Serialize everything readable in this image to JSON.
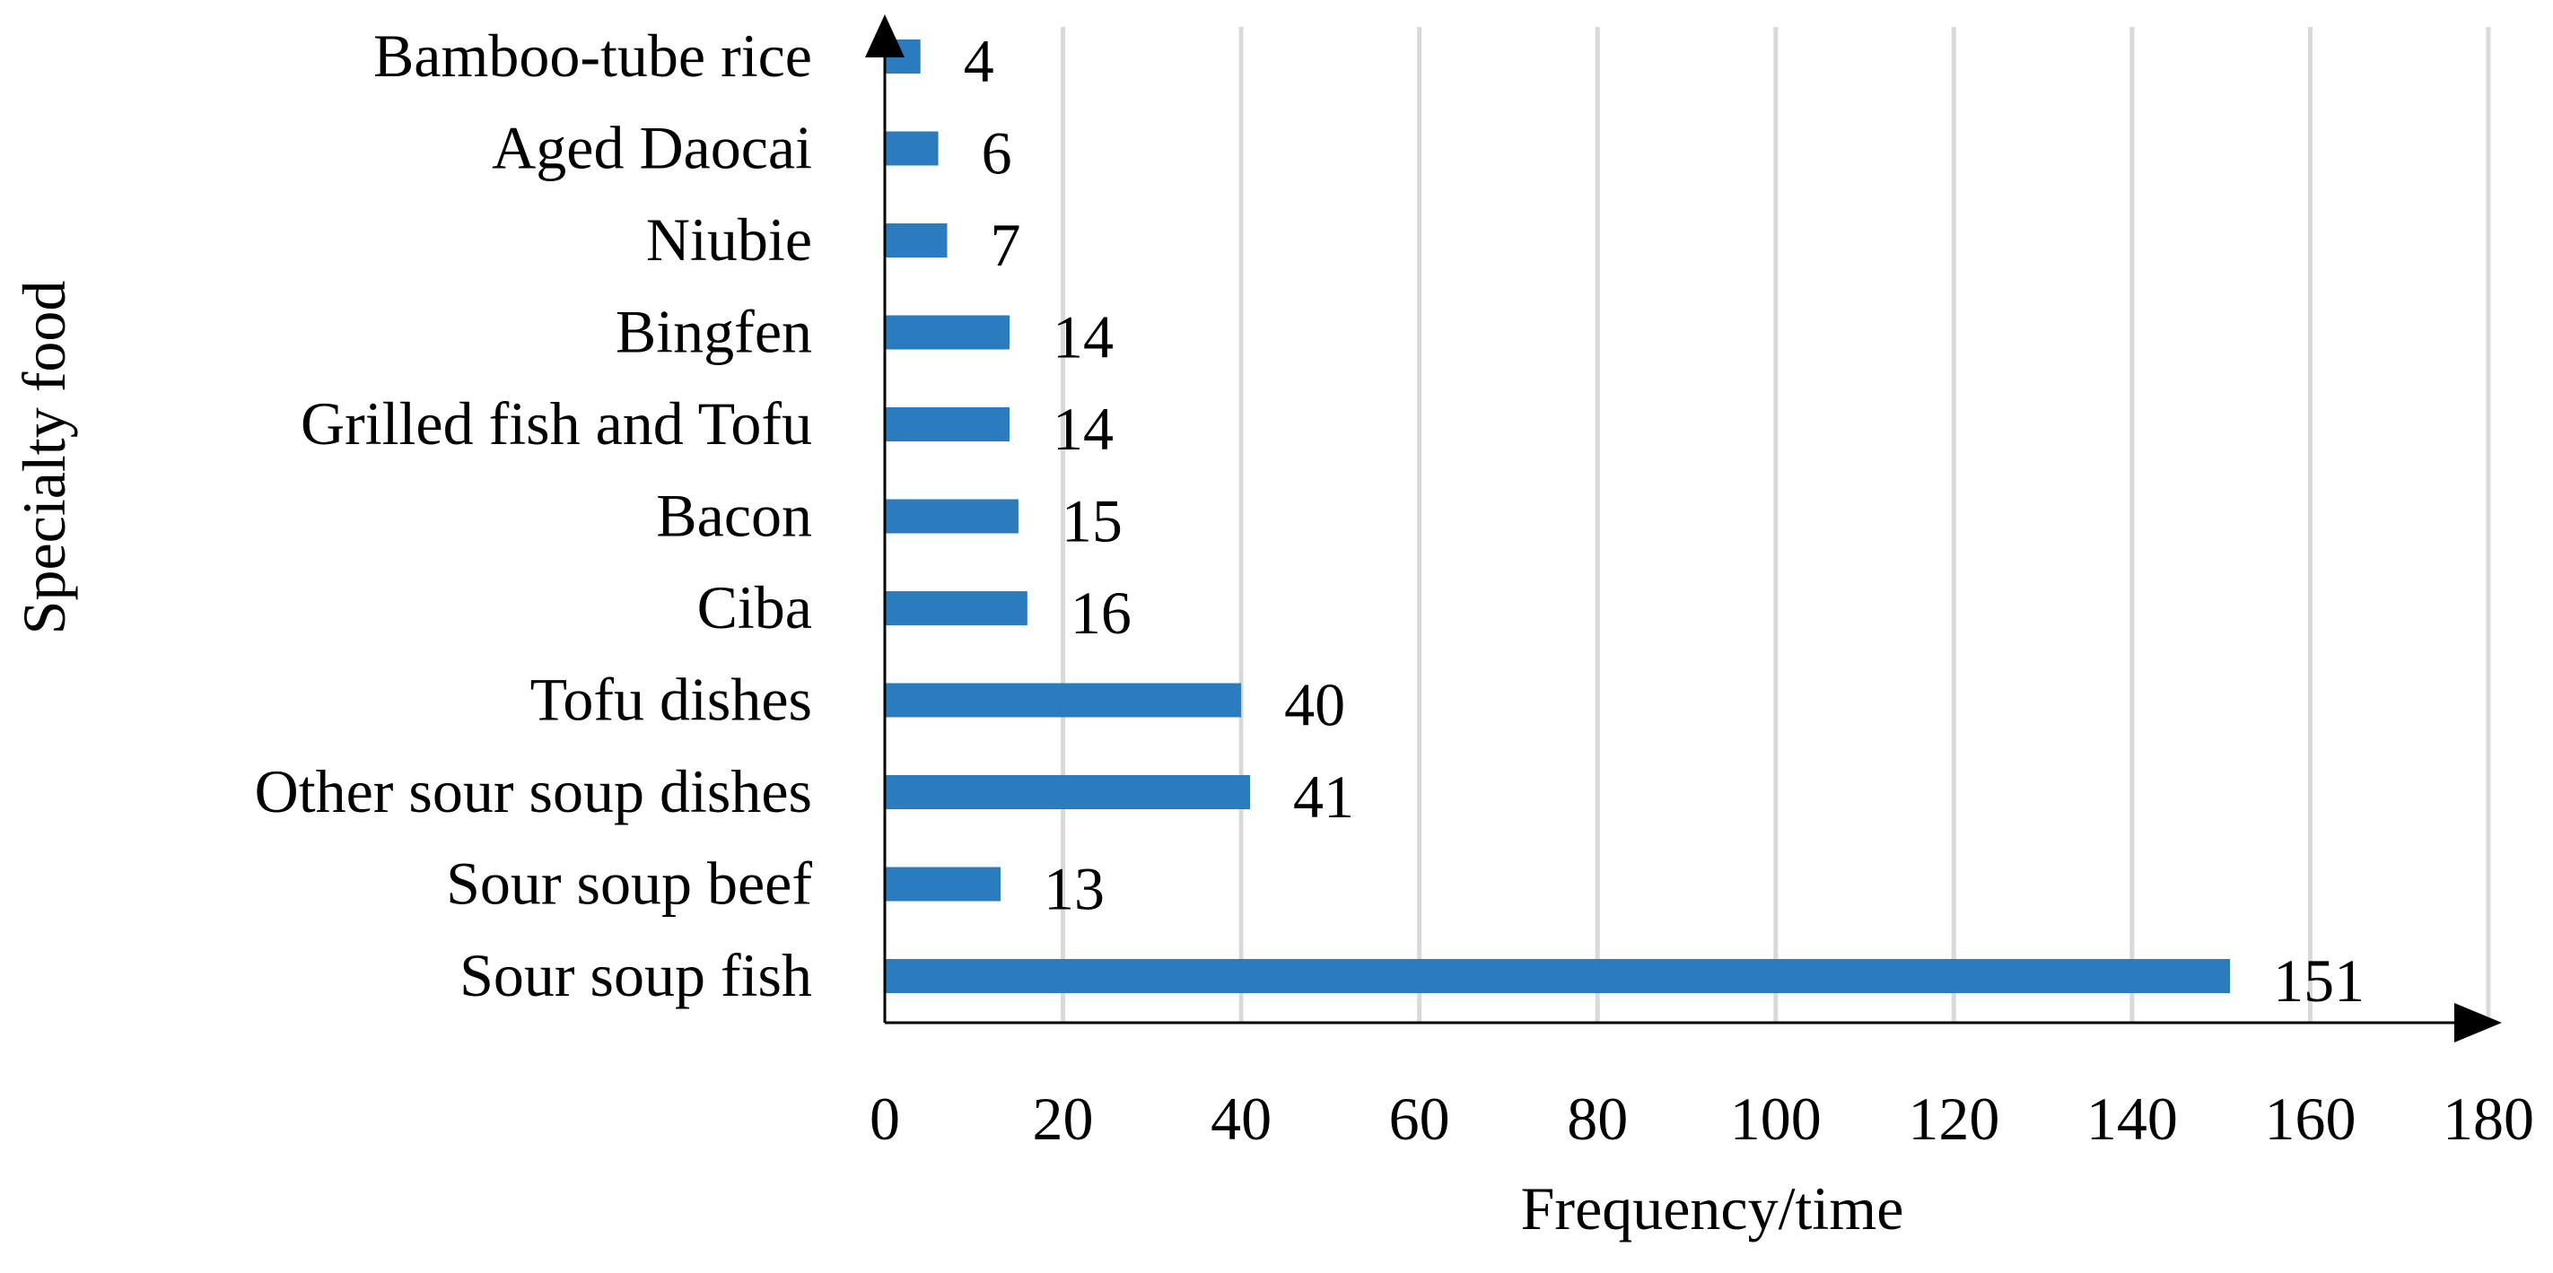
{
  "chart_data": {
    "type": "bar",
    "orientation": "horizontal",
    "categories": [
      "Bamboo-tube rice",
      "Aged Daocai",
      "Niubie",
      "Bingfen",
      "Grilled fish and Tofu",
      "Bacon",
      "Ciba",
      "Tofu dishes",
      "Other sour soup dishes",
      "Sour soup beef",
      "Sour soup fish"
    ],
    "values": [
      4,
      6,
      7,
      14,
      14,
      15,
      16,
      40,
      41,
      13,
      151
    ],
    "data_labels": [
      "4",
      "6",
      "7",
      "14",
      "14",
      "15",
      "16",
      "40",
      "41",
      "13",
      "151"
    ],
    "title": "",
    "xlabel": "Frequency/time",
    "ylabel": "Specialty food",
    "xlim": [
      0,
      180
    ],
    "xticks": [
      0,
      20,
      40,
      60,
      80,
      100,
      120,
      140,
      160,
      180
    ],
    "xtick_labels": [
      "0",
      "20",
      "40",
      "60",
      "80",
      "100",
      "120",
      "140",
      "160",
      "180"
    ],
    "grid": "vertical",
    "legend": "none",
    "bar_color": "#2b7bbf"
  }
}
